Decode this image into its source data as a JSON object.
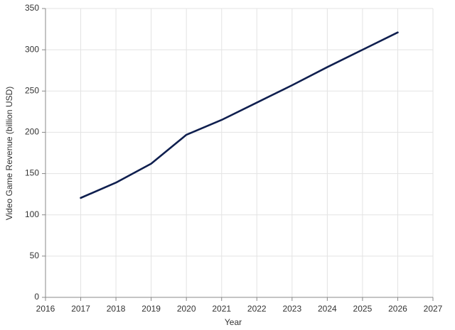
{
  "chart_data": {
    "type": "line",
    "x_label": "Year",
    "y_label": "Video Game Revenue (billion USD)",
    "x": [
      2017,
      2018,
      2019,
      2020,
      2021,
      2022,
      2023,
      2024,
      2025,
      2026
    ],
    "values": [
      120.5,
      139,
      162,
      197,
      215,
      236,
      257,
      279,
      300,
      321
    ],
    "color": "#0f1f4f",
    "xlim": [
      2016,
      2027
    ],
    "xticks": [
      2016,
      2017,
      2018,
      2019,
      2020,
      2021,
      2022,
      2023,
      2024,
      2025,
      2026,
      2027
    ],
    "ylim": [
      0,
      350
    ],
    "yticks": [
      0,
      50,
      100,
      150,
      200,
      250,
      300,
      350
    ],
    "grid": true
  }
}
